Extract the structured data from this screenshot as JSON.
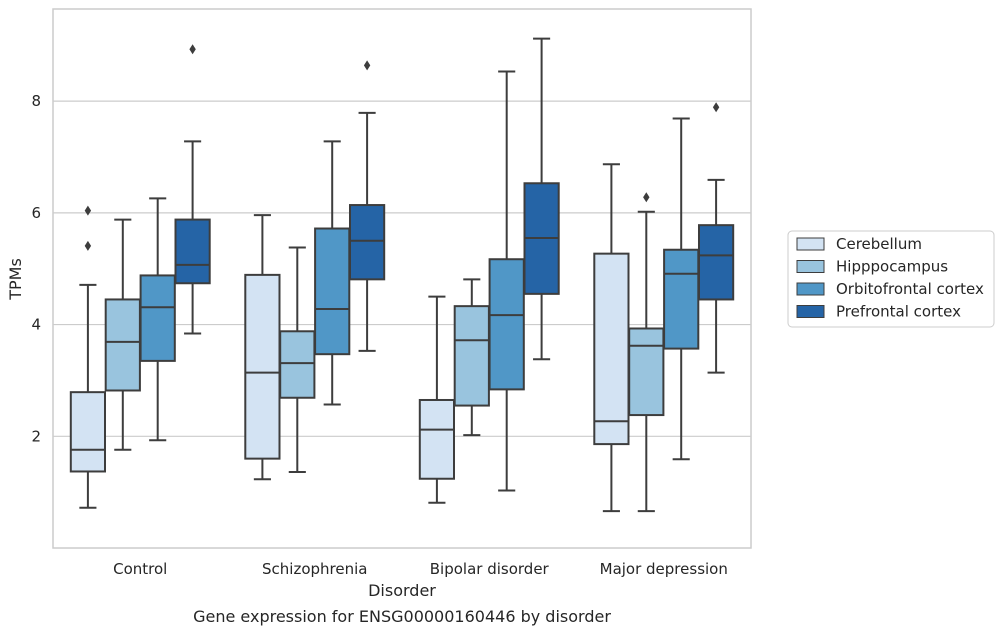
{
  "caption": "Gene expression for ENSG00000160446 by disorder",
  "chart_data": {
    "type": "box",
    "title": "",
    "xlabel": "Disorder",
    "ylabel": "TPMs",
    "ylim": [
      0.0,
      9.65
    ],
    "yticks": [
      2,
      4,
      6,
      8
    ],
    "grid": "horizontal",
    "legend_position": "right",
    "categories": [
      "Control",
      "Schizophrenia",
      "Bipolar disorder",
      "Major depression"
    ],
    "series": [
      {
        "name": "Cerebellum",
        "color": "#d3e3f3",
        "boxes": [
          {
            "whisker_low": 0.72,
            "q1": 1.37,
            "median": 1.76,
            "q3": 2.79,
            "whisker_high": 4.71,
            "outliers": [
              6.04,
              5.41
            ]
          },
          {
            "whisker_low": 1.23,
            "q1": 1.6,
            "median": 3.14,
            "q3": 4.89,
            "whisker_high": 5.96,
            "outliers": []
          },
          {
            "whisker_low": 0.81,
            "q1": 1.24,
            "median": 2.12,
            "q3": 2.65,
            "whisker_high": 4.5,
            "outliers": []
          },
          {
            "whisker_low": 0.66,
            "q1": 1.86,
            "median": 2.27,
            "q3": 5.27,
            "whisker_high": 6.87,
            "outliers": []
          }
        ]
      },
      {
        "name": "Hipppocampus",
        "color": "#99c4de",
        "boxes": [
          {
            "whisker_low": 1.76,
            "q1": 2.82,
            "median": 3.69,
            "q3": 4.45,
            "whisker_high": 5.88,
            "outliers": []
          },
          {
            "whisker_low": 1.36,
            "q1": 2.69,
            "median": 3.31,
            "q3": 3.88,
            "whisker_high": 5.38,
            "outliers": []
          },
          {
            "whisker_low": 2.02,
            "q1": 2.55,
            "median": 3.72,
            "q3": 4.33,
            "whisker_high": 4.81,
            "outliers": []
          },
          {
            "whisker_low": 0.66,
            "q1": 2.38,
            "median": 3.62,
            "q3": 3.93,
            "whisker_high": 6.02,
            "outliers": [
              6.28
            ]
          }
        ]
      },
      {
        "name": "Orbitofrontal cortex",
        "color": "#5097c7",
        "boxes": [
          {
            "whisker_low": 1.93,
            "q1": 3.35,
            "median": 4.31,
            "q3": 4.88,
            "whisker_high": 6.26,
            "outliers": []
          },
          {
            "whisker_low": 2.57,
            "q1": 3.47,
            "median": 4.28,
            "q3": 5.72,
            "whisker_high": 7.28,
            "outliers": []
          },
          {
            "whisker_low": 1.03,
            "q1": 2.84,
            "median": 4.17,
            "q3": 5.17,
            "whisker_high": 8.53,
            "outliers": []
          },
          {
            "whisker_low": 1.59,
            "q1": 3.57,
            "median": 4.91,
            "q3": 5.34,
            "whisker_high": 7.69,
            "outliers": []
          }
        ]
      },
      {
        "name": "Prefrontal cortex",
        "color": "#2564a6",
        "boxes": [
          {
            "whisker_low": 3.84,
            "q1": 4.74,
            "median": 5.07,
            "q3": 5.88,
            "whisker_high": 7.28,
            "outliers": [
              8.93
            ]
          },
          {
            "whisker_low": 3.53,
            "q1": 4.81,
            "median": 5.5,
            "q3": 6.14,
            "whisker_high": 7.79,
            "outliers": [
              8.64
            ]
          },
          {
            "whisker_low": 3.38,
            "q1": 4.55,
            "median": 5.55,
            "q3": 6.53,
            "whisker_high": 9.12,
            "outliers": []
          },
          {
            "whisker_low": 3.14,
            "q1": 4.45,
            "median": 5.24,
            "q3": 5.78,
            "whisker_high": 6.59,
            "outliers": [
              7.89
            ]
          }
        ]
      }
    ]
  }
}
